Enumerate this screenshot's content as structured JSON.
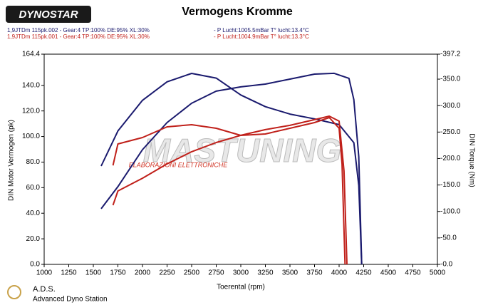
{
  "chart_data": {
    "type": "line",
    "title": "Vermogens Kromme",
    "logo": "DYNOSTAR",
    "runs": [
      {
        "text": "1,9JTDm 115pk.002 - Gear:4 TP:100% DE:95% XL:30%",
        "conditions": "- P Lucht:1005.5mBar T° lucht:13.4°C",
        "color": "#1a1a6e"
      },
      {
        "text": "1,9JTDm 115pk.001 - Gear:4 TP:100% DE:95% XL:30%",
        "conditions": "- P Lucht:1004.9mBar T° lucht:13.3°C",
        "color": "#c0201a"
      }
    ],
    "watermark": "MASTUNING",
    "watermark_sub": "ELABORAZIONI ELETTRONICHE",
    "footer_title": "A.D.S.",
    "footer_sub": "Advanced Dyno Station",
    "x_label": "Toerental (rpm)",
    "y_label": "DIN Motor Vermogen (pk)",
    "y2_label": "DIN Torque (Nm)",
    "xlim": [
      1000,
      5000
    ],
    "xticks": [
      1000,
      1250,
      1500,
      1750,
      2000,
      2250,
      2500,
      2750,
      3000,
      3250,
      3500,
      3750,
      4000,
      4250,
      4500,
      4750,
      5000
    ],
    "ylim": [
      0,
      164.4
    ],
    "yticks": [
      {
        "value": 0,
        "label": "0.0"
      },
      {
        "value": 20,
        "label": "20.0"
      },
      {
        "value": 40,
        "label": "40.0"
      },
      {
        "value": 60,
        "label": "60.0"
      },
      {
        "value": 80,
        "label": "80.0"
      },
      {
        "value": 100,
        "label": "100.0"
      },
      {
        "value": 120,
        "label": "120.0"
      },
      {
        "value": 140,
        "label": "140.0"
      },
      164.4
    ],
    "y2lim": [
      0,
      397.2
    ],
    "y2ticks": [
      {
        "value": 0,
        "label": "-0.0"
      },
      {
        "value": 50,
        "label": "-50.0"
      },
      {
        "value": 100,
        "label": "-100.0"
      },
      {
        "value": 150,
        "label": "-150.0"
      },
      {
        "value": 200,
        "label": "-200.0"
      },
      {
        "value": 250,
        "label": "-250.0"
      },
      {
        "value": 300,
        "label": "-300.0"
      },
      {
        "value": 350,
        "label": "-350.0"
      },
      {
        "value": 397.2,
        "label": "-397.2"
      }
    ],
    "series": [
      {
        "color": "#1a1a6e",
        "axis": "y2",
        "x": [
          1580,
          1750,
          2000,
          2250,
          2500,
          2750,
          3000,
          3250,
          3500,
          3750,
          4000,
          4150,
          4200,
          4230
        ],
        "values": [
          185.8,
          252,
          310,
          345,
          360.8,
          352,
          320,
          298,
          284,
          275,
          264,
          230,
          149,
          0
        ]
      },
      {
        "color": "#1a1a6e",
        "x": [
          1580,
          1750,
          2000,
          2250,
          2500,
          2750,
          3000,
          3250,
          3500,
          3750,
          3950,
          4100,
          4150,
          4200,
          4230
        ],
        "values": [
          43.5,
          60.8,
          89.7,
          110.9,
          126,
          135.5,
          138.8,
          141,
          144.9,
          148.8,
          149.4,
          145.5,
          128.8,
          84.2,
          0
        ]
      },
      {
        "color": "#c0201a",
        "axis": "y2",
        "x": [
          1700,
          1750,
          2000,
          2250,
          2500,
          2750,
          3000,
          3250,
          3500,
          3750,
          3900,
          4000,
          4030,
          4060
        ],
        "values": [
          187,
          227.5,
          239.7,
          259.9,
          263.9,
          257.2,
          243.7,
          246.4,
          257.2,
          268,
          277.4,
          257.2,
          189.8,
          0
        ]
      },
      {
        "color": "#c0201a",
        "x": [
          1700,
          1750,
          2000,
          2250,
          2500,
          2750,
          3000,
          3250,
          3500,
          3750,
          3900,
          4000,
          4050,
          4080
        ],
        "values": [
          46.3,
          57.4,
          67.4,
          78.6,
          88.1,
          95.3,
          100.9,
          105.4,
          108.7,
          113.2,
          115.9,
          112,
          73,
          0
        ]
      }
    ]
  }
}
